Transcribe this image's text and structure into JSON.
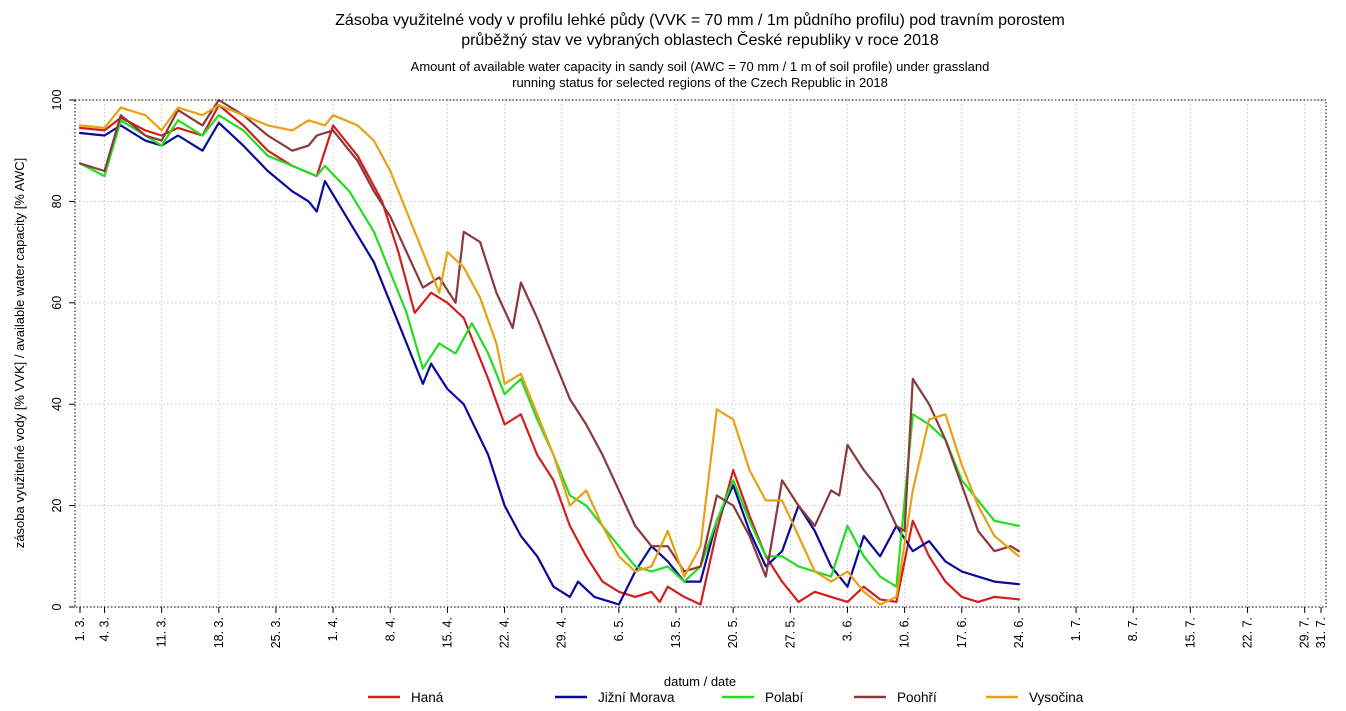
{
  "chart_data": {
    "type": "line",
    "title": "Zásoba využitelné vody v profilu lehké půdy (VVK = 70 mm / 1m půdního profilu) pod travním porostem",
    "title_line2": "průběžný stav ve vybraných oblastech České republiky v roce 2018",
    "subtitle": "Amount of available water capacity in sandy soil (AWC = 70 mm / 1 m of soil profile) under grassland",
    "subtitle_line2": "running status for selected regions of the Czech Republic in 2018",
    "xlabel": "datum / date",
    "ylabel": "zásoba využitelné vody [% VVK] / available water capacity [% AWC]",
    "ylim": [
      0,
      100
    ],
    "xlim": [
      0,
      152
    ],
    "yticks": [
      0,
      20,
      40,
      60,
      80,
      100
    ],
    "x_unit": "days since 1.3.2018",
    "x_ticks": [
      {
        "label": "1. 3.",
        "day": 0
      },
      {
        "label": "4. 3.",
        "day": 3
      },
      {
        "label": "11. 3.",
        "day": 10
      },
      {
        "label": "18. 3.",
        "day": 17
      },
      {
        "label": "25. 3.",
        "day": 24
      },
      {
        "label": "1. 4.",
        "day": 31
      },
      {
        "label": "8. 4.",
        "day": 38
      },
      {
        "label": "15. 4.",
        "day": 45
      },
      {
        "label": "22. 4.",
        "day": 52
      },
      {
        "label": "29. 4.",
        "day": 59
      },
      {
        "label": "6. 5.",
        "day": 66
      },
      {
        "label": "13. 5.",
        "day": 73
      },
      {
        "label": "20. 5.",
        "day": 80
      },
      {
        "label": "27. 5.",
        "day": 87
      },
      {
        "label": "3. 6.",
        "day": 94
      },
      {
        "label": "10. 6.",
        "day": 101
      },
      {
        "label": "17. 6.",
        "day": 108
      },
      {
        "label": "24. 6.",
        "day": 115
      },
      {
        "label": "1. 7.",
        "day": 122
      },
      {
        "label": "8. 7.",
        "day": 129
      },
      {
        "label": "15. 7.",
        "day": 136
      },
      {
        "label": "22. 7.",
        "day": 143
      },
      {
        "label": "29. 7.",
        "day": 150
      },
      {
        "label": "31. 7.",
        "day": 152
      }
    ],
    "grid": true,
    "legend_position": "bottom",
    "series": [
      {
        "name": "Haná",
        "color": "#d11f1f",
        "points": [
          [
            0,
            94.5
          ],
          [
            3,
            94
          ],
          [
            5,
            96.5
          ],
          [
            8,
            94
          ],
          [
            10,
            93
          ],
          [
            12,
            94.5
          ],
          [
            15,
            93
          ],
          [
            17,
            99
          ],
          [
            20,
            95
          ],
          [
            23,
            90
          ],
          [
            26,
            87
          ],
          [
            29,
            85
          ],
          [
            31,
            95
          ],
          [
            34,
            89
          ],
          [
            37,
            80
          ],
          [
            39,
            70
          ],
          [
            41,
            58
          ],
          [
            43,
            62
          ],
          [
            45,
            60
          ],
          [
            47,
            57
          ],
          [
            50,
            45
          ],
          [
            52,
            36
          ],
          [
            54,
            38
          ],
          [
            56,
            30
          ],
          [
            58,
            25
          ],
          [
            60,
            16
          ],
          [
            62,
            10
          ],
          [
            64,
            5
          ],
          [
            66,
            3
          ],
          [
            68,
            2
          ],
          [
            70,
            3
          ],
          [
            71,
            1
          ],
          [
            72,
            4
          ],
          [
            74,
            2
          ],
          [
            76,
            0.5
          ],
          [
            78,
            15
          ],
          [
            80,
            27
          ],
          [
            82,
            18
          ],
          [
            84,
            10
          ],
          [
            86,
            5
          ],
          [
            88,
            1
          ],
          [
            90,
            3
          ],
          [
            92,
            2
          ],
          [
            94,
            1
          ],
          [
            96,
            4
          ],
          [
            98,
            1.5
          ],
          [
            100,
            1
          ],
          [
            102,
            17
          ],
          [
            104,
            10
          ],
          [
            106,
            5
          ],
          [
            108,
            2
          ],
          [
            110,
            1
          ],
          [
            112,
            2
          ],
          [
            115,
            1.5
          ]
        ]
      },
      {
        "name": "Jižní Morava",
        "color": "#0a0a9a",
        "points": [
          [
            0,
            93.5
          ],
          [
            3,
            93
          ],
          [
            5,
            95
          ],
          [
            8,
            92
          ],
          [
            10,
            91
          ],
          [
            12,
            93
          ],
          [
            15,
            90
          ],
          [
            17,
            95.5
          ],
          [
            20,
            91
          ],
          [
            23,
            86
          ],
          [
            26,
            82
          ],
          [
            28,
            80
          ],
          [
            29,
            78
          ],
          [
            30,
            84
          ],
          [
            33,
            76
          ],
          [
            36,
            68
          ],
          [
            38,
            60
          ],
          [
            40,
            52
          ],
          [
            42,
            44
          ],
          [
            43,
            48
          ],
          [
            45,
            43
          ],
          [
            47,
            40
          ],
          [
            50,
            30
          ],
          [
            52,
            20
          ],
          [
            54,
            14
          ],
          [
            56,
            10
          ],
          [
            58,
            4
          ],
          [
            60,
            2
          ],
          [
            61,
            5
          ],
          [
            63,
            2
          ],
          [
            65,
            1
          ],
          [
            66,
            0.5
          ],
          [
            68,
            7
          ],
          [
            70,
            12
          ],
          [
            72,
            9
          ],
          [
            74,
            5
          ],
          [
            76,
            5
          ],
          [
            78,
            17
          ],
          [
            80,
            24
          ],
          [
            82,
            15
          ],
          [
            84,
            8
          ],
          [
            86,
            11
          ],
          [
            88,
            20
          ],
          [
            90,
            15
          ],
          [
            92,
            8
          ],
          [
            94,
            4
          ],
          [
            96,
            14
          ],
          [
            98,
            10
          ],
          [
            100,
            16
          ],
          [
            102,
            11
          ],
          [
            104,
            13
          ],
          [
            106,
            9
          ],
          [
            108,
            7
          ],
          [
            110,
            6
          ],
          [
            112,
            5
          ],
          [
            115,
            4.5
          ]
        ]
      },
      {
        "name": "Polabí",
        "color": "#22dd22",
        "points": [
          [
            0,
            87.5
          ],
          [
            3,
            85
          ],
          [
            5,
            96
          ],
          [
            8,
            93
          ],
          [
            10,
            91
          ],
          [
            12,
            96
          ],
          [
            15,
            93
          ],
          [
            17,
            97
          ],
          [
            20,
            94
          ],
          [
            23,
            89
          ],
          [
            26,
            87
          ],
          [
            29,
            85
          ],
          [
            30,
            87
          ],
          [
            33,
            82
          ],
          [
            36,
            74
          ],
          [
            38,
            66
          ],
          [
            40,
            58
          ],
          [
            42,
            47
          ],
          [
            44,
            52
          ],
          [
            46,
            50
          ],
          [
            48,
            56
          ],
          [
            50,
            50
          ],
          [
            52,
            42
          ],
          [
            54,
            45
          ],
          [
            56,
            37
          ],
          [
            58,
            30
          ],
          [
            60,
            22
          ],
          [
            62,
            20
          ],
          [
            64,
            16
          ],
          [
            66,
            12
          ],
          [
            68,
            8
          ],
          [
            70,
            7
          ],
          [
            72,
            8
          ],
          [
            74,
            5
          ],
          [
            76,
            8
          ],
          [
            78,
            17
          ],
          [
            80,
            25
          ],
          [
            82,
            17
          ],
          [
            84,
            10
          ],
          [
            86,
            10
          ],
          [
            88,
            8
          ],
          [
            90,
            7
          ],
          [
            92,
            6
          ],
          [
            94,
            16
          ],
          [
            96,
            10
          ],
          [
            98,
            6
          ],
          [
            100,
            4
          ],
          [
            102,
            38
          ],
          [
            104,
            36
          ],
          [
            106,
            33
          ],
          [
            108,
            25
          ],
          [
            110,
            21
          ],
          [
            112,
            17
          ],
          [
            115,
            16
          ]
        ]
      },
      {
        "name": "Poohří",
        "color": "#8b3a3a",
        "points": [
          [
            0,
            87.5
          ],
          [
            3,
            86
          ],
          [
            5,
            97
          ],
          [
            8,
            93
          ],
          [
            10,
            92
          ],
          [
            12,
            98
          ],
          [
            15,
            95
          ],
          [
            17,
            100
          ],
          [
            20,
            97
          ],
          [
            23,
            93
          ],
          [
            26,
            90
          ],
          [
            28,
            91
          ],
          [
            29,
            93
          ],
          [
            31,
            94
          ],
          [
            34,
            88
          ],
          [
            36,
            82
          ],
          [
            38,
            77
          ],
          [
            40,
            70
          ],
          [
            42,
            63
          ],
          [
            44,
            65
          ],
          [
            46,
            60
          ],
          [
            47,
            74
          ],
          [
            49,
            72
          ],
          [
            51,
            62
          ],
          [
            53,
            55
          ],
          [
            54,
            64
          ],
          [
            56,
            57
          ],
          [
            58,
            49
          ],
          [
            60,
            41
          ],
          [
            62,
            36
          ],
          [
            64,
            30
          ],
          [
            66,
            23
          ],
          [
            68,
            16
          ],
          [
            70,
            12
          ],
          [
            72,
            12
          ],
          [
            74,
            7
          ],
          [
            76,
            8
          ],
          [
            78,
            22
          ],
          [
            80,
            20
          ],
          [
            82,
            14
          ],
          [
            84,
            6
          ],
          [
            86,
            25
          ],
          [
            88,
            20
          ],
          [
            90,
            16
          ],
          [
            92,
            23
          ],
          [
            93,
            22
          ],
          [
            94,
            32
          ],
          [
            96,
            27
          ],
          [
            98,
            23
          ],
          [
            100,
            16
          ],
          [
            101,
            15
          ],
          [
            102,
            45
          ],
          [
            104,
            40
          ],
          [
            106,
            33
          ],
          [
            108,
            24
          ],
          [
            110,
            15
          ],
          [
            112,
            11
          ],
          [
            114,
            12
          ],
          [
            115,
            11
          ]
        ]
      },
      {
        "name": "Vysočina",
        "color": "#e6a214",
        "points": [
          [
            0,
            95
          ],
          [
            3,
            94.5
          ],
          [
            5,
            98.5
          ],
          [
            8,
            97
          ],
          [
            10,
            94
          ],
          [
            12,
            98.5
          ],
          [
            15,
            97
          ],
          [
            17,
            99
          ],
          [
            20,
            97
          ],
          [
            23,
            95
          ],
          [
            26,
            94
          ],
          [
            28,
            96
          ],
          [
            30,
            95
          ],
          [
            31,
            97
          ],
          [
            34,
            95
          ],
          [
            36,
            92
          ],
          [
            38,
            86
          ],
          [
            40,
            78
          ],
          [
            42,
            70
          ],
          [
            44,
            62
          ],
          [
            45,
            70
          ],
          [
            47,
            67
          ],
          [
            49,
            61
          ],
          [
            51,
            52
          ],
          [
            52,
            44
          ],
          [
            54,
            46
          ],
          [
            56,
            38
          ],
          [
            58,
            30
          ],
          [
            60,
            20
          ],
          [
            62,
            23
          ],
          [
            64,
            16
          ],
          [
            66,
            10
          ],
          [
            68,
            7
          ],
          [
            70,
            8
          ],
          [
            72,
            15
          ],
          [
            74,
            6
          ],
          [
            76,
            12
          ],
          [
            78,
            39
          ],
          [
            80,
            37
          ],
          [
            82,
            27
          ],
          [
            84,
            21
          ],
          [
            86,
            21
          ],
          [
            88,
            14
          ],
          [
            90,
            7
          ],
          [
            92,
            5
          ],
          [
            94,
            7
          ],
          [
            96,
            3
          ],
          [
            98,
            0.5
          ],
          [
            100,
            2
          ],
          [
            102,
            23
          ],
          [
            104,
            37
          ],
          [
            106,
            38
          ],
          [
            108,
            28
          ],
          [
            110,
            20
          ],
          [
            112,
            14
          ],
          [
            115,
            10
          ]
        ]
      }
    ]
  }
}
